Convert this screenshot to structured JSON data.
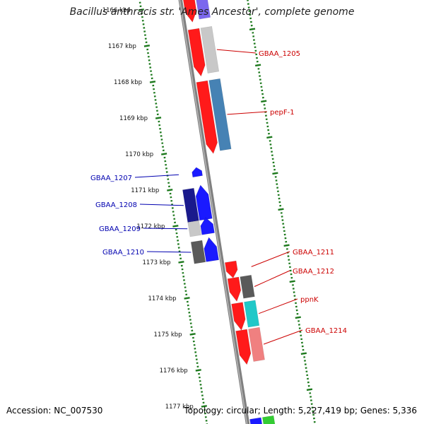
{
  "title": "Bacillus anthracis str. 'Ames Ancestor', complete genome",
  "footer": {
    "accession": "Accession: NC_007530",
    "topology": "Topology: circular; Length: 5,227,419 bp; Genes: 5,336"
  },
  "colors": {
    "ruler_tick": "#1e7a1e",
    "backbone": "#808080",
    "forward_label": "#cc0000",
    "reverse_label": "#0000b0",
    "gene_red": "#ff1a1a",
    "gene_blue": "#1a1aff",
    "cog_purple": "#7b68ee",
    "cog_light_gray": "#c8c8c8",
    "cog_steel_blue": "#4682b4",
    "cog_navy": "#1a1a8c",
    "cog_dark_gray": "#5a5a5a",
    "cog_cyan": "#20c8c8",
    "cog_salmon": "#f08080",
    "cog_green": "#33cc33"
  },
  "ruler": {
    "unit": "kbp",
    "ticks": [
      {
        "kbp": 1166,
        "label": "1166 kbp"
      },
      {
        "kbp": 1167,
        "label": "1167 kbp"
      },
      {
        "kbp": 1168,
        "label": "1168 kbp"
      },
      {
        "kbp": 1169,
        "label": "1169 kbp"
      },
      {
        "kbp": 1170,
        "label": "1170 kbp"
      },
      {
        "kbp": 1171,
        "label": "1171 kbp"
      },
      {
        "kbp": 1172,
        "label": "1172 kbp"
      },
      {
        "kbp": 1173,
        "label": "1173 kbp"
      },
      {
        "kbp": 1174,
        "label": "1174 kbp"
      },
      {
        "kbp": 1175,
        "label": "1175 kbp"
      },
      {
        "kbp": 1176,
        "label": "1176 kbp"
      },
      {
        "kbp": 1177,
        "label": "1177 kbp"
      }
    ]
  },
  "features": [
    {
      "strand": "+",
      "start": 1165.3,
      "end": 1166.55,
      "gene": "gene_red",
      "cog": "cog_purple"
    },
    {
      "strand": "+",
      "start": 1166.75,
      "end": 1168.05,
      "gene": "gene_red",
      "cog": "cog_light_gray",
      "label": "GBAA_1205"
    },
    {
      "strand": "+",
      "start": 1168.2,
      "end": 1170.2,
      "gene": "gene_red",
      "cog": "cog_steel_blue",
      "label": "pepF-1"
    },
    {
      "strand": "-",
      "start": 1170.5,
      "end": 1170.75,
      "gene": "gene_blue",
      "label": "GBAA_1207"
    },
    {
      "strand": "-",
      "start": 1171.0,
      "end": 1171.95,
      "gene": "gene_blue",
      "cog": "cog_navy",
      "label": "GBAA_1208"
    },
    {
      "strand": "-",
      "start": 1171.9,
      "end": 1172.35,
      "gene": "gene_blue",
      "cog": "cog_light_gray",
      "label": "GBAA_1209"
    },
    {
      "strand": "-",
      "start": 1172.45,
      "end": 1173.1,
      "gene": "gene_blue",
      "cog": "cog_dark_gray",
      "label": "GBAA_1210"
    },
    {
      "strand": "+",
      "start": 1173.2,
      "end": 1173.65,
      "gene": "gene_red",
      "label": "GBAA_1211"
    },
    {
      "strand": "+",
      "start": 1173.65,
      "end": 1174.3,
      "gene": "gene_red",
      "cog": "cog_dark_gray",
      "label": "GBAA_1212"
    },
    {
      "strand": "+",
      "start": 1174.35,
      "end": 1175.1,
      "gene": "gene_red",
      "cog": "cog_cyan",
      "label": "ppnK"
    },
    {
      "strand": "+",
      "start": 1175.1,
      "end": 1176.05,
      "gene": "gene_red",
      "cog": "cog_salmon",
      "label": "GBAA_1214"
    },
    {
      "strand": "+",
      "start": 1177.55,
      "end": 1178.2,
      "gene": "gene_blue",
      "cog": "cog_green"
    }
  ]
}
